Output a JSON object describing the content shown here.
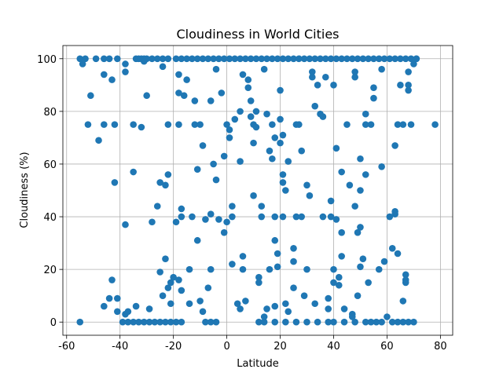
{
  "chart_data": {
    "type": "scatter",
    "title": "Cloudiness in World Cities",
    "x_label": "Latitude",
    "y_label": "Cloudiness (%)",
    "color": "#1f77b4",
    "grid": true,
    "xlim": [
      -61.4,
      84.6
    ],
    "ylim": [
      -5,
      105
    ],
    "xticks": [
      -60,
      -40,
      -20,
      0,
      20,
      40,
      60,
      80
    ],
    "yticks": [
      0,
      20,
      40,
      60,
      80,
      100
    ],
    "x": [
      -55,
      -53,
      -49,
      -46,
      -44,
      -41,
      -34,
      -33,
      -32,
      -31,
      -30,
      -28,
      -26,
      -24,
      -22,
      -19,
      -17,
      -15,
      -13,
      -11,
      -9,
      -7,
      -5,
      -3,
      -1,
      1,
      3,
      5,
      7,
      9,
      11,
      13,
      15,
      17,
      19,
      21,
      23,
      25,
      27,
      29,
      31,
      33,
      35,
      37,
      39,
      41,
      43,
      45,
      47,
      49,
      51,
      53,
      55,
      57,
      59,
      61,
      63,
      65,
      67,
      69,
      71,
      -55,
      -39,
      -37,
      -35,
      -33,
      -31,
      -29,
      -27,
      -25,
      -23,
      -21,
      -19,
      -17,
      -8,
      -6,
      -4,
      12,
      14,
      18,
      22,
      26,
      30,
      34,
      38,
      40,
      44,
      48,
      52,
      54,
      56,
      58,
      62,
      64,
      66,
      68,
      70,
      -54,
      -52,
      -51,
      -48,
      -46,
      -46,
      -46,
      -44,
      -43,
      -43,
      -42,
      -42,
      -41,
      -41,
      -38,
      -38,
      -38,
      -38,
      -37,
      -35,
      -35,
      -34,
      -32,
      -31,
      -30,
      -29,
      -28,
      -26,
      -25,
      -25,
      -24,
      -24,
      -23,
      -23,
      -22,
      -22,
      -22,
      -21,
      -21,
      -20,
      -19,
      -18,
      -18,
      -18,
      -18,
      -17,
      -17,
      -17,
      -16,
      -15,
      -14,
      -14,
      -13,
      -12,
      -12,
      -11,
      -11,
      -10,
      -10,
      -9,
      -9,
      -8,
      -7,
      -6,
      -6,
      -6,
      -5,
      -4,
      -4,
      -3,
      -2,
      -1,
      -1,
      0,
      0,
      1,
      1,
      2,
      2,
      2,
      3,
      4,
      5,
      5,
      5,
      6,
      6,
      6,
      7,
      8,
      8,
      9,
      9,
      10,
      10,
      10,
      11,
      11,
      12,
      12,
      13,
      13,
      14,
      14,
      15,
      15,
      16,
      16,
      17,
      17,
      18,
      18,
      18,
      18,
      19,
      19,
      20,
      20,
      20,
      21,
      21,
      21,
      21,
      22,
      22,
      23,
      23,
      25,
      25,
      25,
      26,
      26,
      27,
      28,
      28,
      29,
      30,
      30,
      31,
      32,
      32,
      33,
      33,
      34,
      35,
      36,
      36,
      37,
      38,
      38,
      39,
      39,
      40,
      40,
      40,
      41,
      41,
      42,
      42,
      43,
      43,
      43,
      44,
      45,
      46,
      47,
      47,
      48,
      48,
      48,
      49,
      49,
      50,
      50,
      50,
      50,
      51,
      52,
      52,
      52,
      53,
      54,
      55,
      55,
      57,
      58,
      58,
      59,
      60,
      61,
      62,
      63,
      63,
      63,
      64,
      64,
      65,
      66,
      66,
      67,
      67,
      67,
      68,
      68,
      68,
      69,
      70,
      71,
      78
    ],
    "values": [
      100,
      100,
      100,
      100,
      100,
      100,
      100,
      100,
      100,
      100,
      100,
      100,
      100,
      100,
      100,
      100,
      100,
      100,
      100,
      100,
      100,
      100,
      100,
      100,
      100,
      100,
      100,
      100,
      100,
      100,
      100,
      100,
      100,
      100,
      100,
      100,
      100,
      100,
      100,
      100,
      100,
      100,
      100,
      100,
      100,
      100,
      100,
      100,
      100,
      100,
      100,
      100,
      100,
      100,
      100,
      100,
      100,
      100,
      100,
      100,
      100,
      0,
      0,
      0,
      0,
      0,
      0,
      0,
      0,
      0,
      0,
      0,
      0,
      0,
      0,
      0,
      0,
      0,
      0,
      0,
      0,
      0,
      0,
      0,
      0,
      0,
      0,
      0,
      0,
      0,
      0,
      0,
      0,
      0,
      0,
      0,
      0,
      98,
      75,
      86,
      69,
      75,
      94,
      6,
      9,
      16,
      92,
      75,
      53,
      9,
      4,
      37,
      95,
      98,
      3,
      4,
      75,
      57,
      6,
      74,
      99,
      86,
      5,
      38,
      44,
      53,
      19,
      10,
      97,
      52,
      24,
      56,
      75,
      13,
      15,
      7,
      17,
      38,
      75,
      94,
      87,
      16,
      12,
      43,
      40,
      86,
      92,
      20,
      7,
      40,
      84,
      75,
      58,
      31,
      8,
      75,
      67,
      4,
      39,
      13,
      84,
      20,
      41,
      60,
      96,
      54,
      39,
      87,
      63,
      34,
      75,
      38,
      73,
      70,
      40,
      44,
      22,
      77,
      7,
      5,
      61,
      80,
      94,
      25,
      20,
      8,
      89,
      92,
      78,
      84,
      75,
      48,
      68,
      80,
      74,
      15,
      17,
      44,
      40,
      96,
      2,
      5,
      79,
      65,
      20,
      62,
      75,
      6,
      70,
      40,
      31,
      21,
      26,
      68,
      77,
      88,
      56,
      53,
      71,
      40,
      50,
      7,
      61,
      4,
      28,
      23,
      13,
      40,
      75,
      75,
      65,
      40,
      10,
      52,
      20,
      48,
      93,
      95,
      82,
      7,
      90,
      79,
      78,
      40,
      93,
      5,
      9,
      40,
      46,
      90,
      20,
      15,
      39,
      66,
      17,
      14,
      57,
      34,
      25,
      5,
      75,
      52,
      3,
      2,
      95,
      93,
      44,
      10,
      34,
      50,
      36,
      21,
      62,
      24,
      79,
      75,
      56,
      15,
      75,
      89,
      85,
      20,
      59,
      96,
      23,
      2,
      40,
      28,
      41,
      67,
      42,
      26,
      75,
      90,
      75,
      8,
      18,
      16,
      15,
      95,
      90,
      88,
      75,
      98,
      100,
      75
    ]
  }
}
